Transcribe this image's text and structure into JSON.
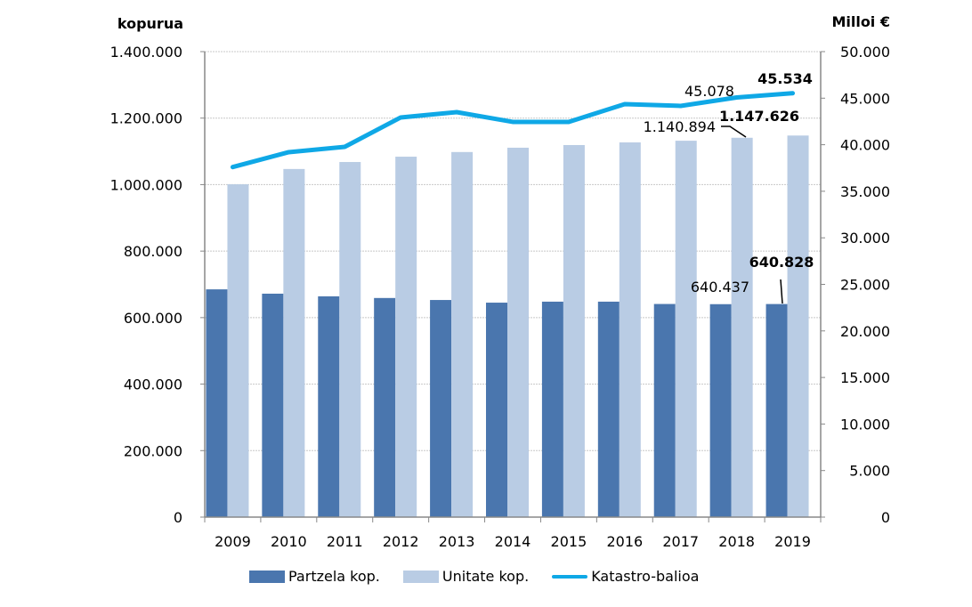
{
  "chart_data": {
    "type": "bar",
    "title": "",
    "categories": [
      "2009",
      "2010",
      "2011",
      "2012",
      "2013",
      "2014",
      "2015",
      "2016",
      "2017",
      "2018",
      "2019"
    ],
    "series": [
      {
        "name": "Partzela kop.",
        "type": "bar",
        "axis": "left",
        "color": "#4a76ae",
        "values": [
          685000,
          672000,
          664000,
          659000,
          653000,
          645000,
          648000,
          648000,
          641000,
          640437,
          640828
        ]
      },
      {
        "name": "Unitate kop.",
        "type": "bar",
        "axis": "left",
        "color": "#b9cce4",
        "values": [
          1001000,
          1047000,
          1068000,
          1084000,
          1098000,
          1111000,
          1119000,
          1127000,
          1132000,
          1140894,
          1147626
        ]
      },
      {
        "name": "Katastro-balioa",
        "type": "line",
        "axis": "right",
        "color": "#0fa8e6",
        "values": [
          37600,
          39200,
          39770,
          42930,
          43500,
          42450,
          42450,
          44360,
          44170,
          45078,
          45534
        ]
      }
    ],
    "ylabel": "kopurua",
    "ylim": [
      0,
      1400000
    ],
    "yticks": [
      "0",
      "200.000",
      "400.000",
      "600.000",
      "800.000",
      "1.000.000",
      "1.200.000",
      "1.400.000"
    ],
    "y2label": "Milloi €",
    "y2lim": [
      0,
      50000
    ],
    "y2ticks": [
      "0",
      "5.000",
      "10.000",
      "15.000",
      "20.000",
      "25.000",
      "30.000",
      "35.000",
      "40.000",
      "45.000",
      "50.000"
    ],
    "grid": true,
    "legend_position": "bottom",
    "annotations": [
      {
        "series": "Partzela kop.",
        "category": "2018",
        "text": "640.437",
        "bold": false
      },
      {
        "series": "Partzela kop.",
        "category": "2019",
        "text": "640.828",
        "bold": true
      },
      {
        "series": "Unitate kop.",
        "category": "2018",
        "text": "1.140.894",
        "bold": false
      },
      {
        "series": "Unitate kop.",
        "category": "2019",
        "text": "1.147.626",
        "bold": true
      },
      {
        "series": "Katastro-balioa",
        "category": "2018",
        "text": "45.078",
        "bold": false
      },
      {
        "series": "Katastro-balioa",
        "category": "2019",
        "text": "45.534",
        "bold": true
      }
    ]
  }
}
